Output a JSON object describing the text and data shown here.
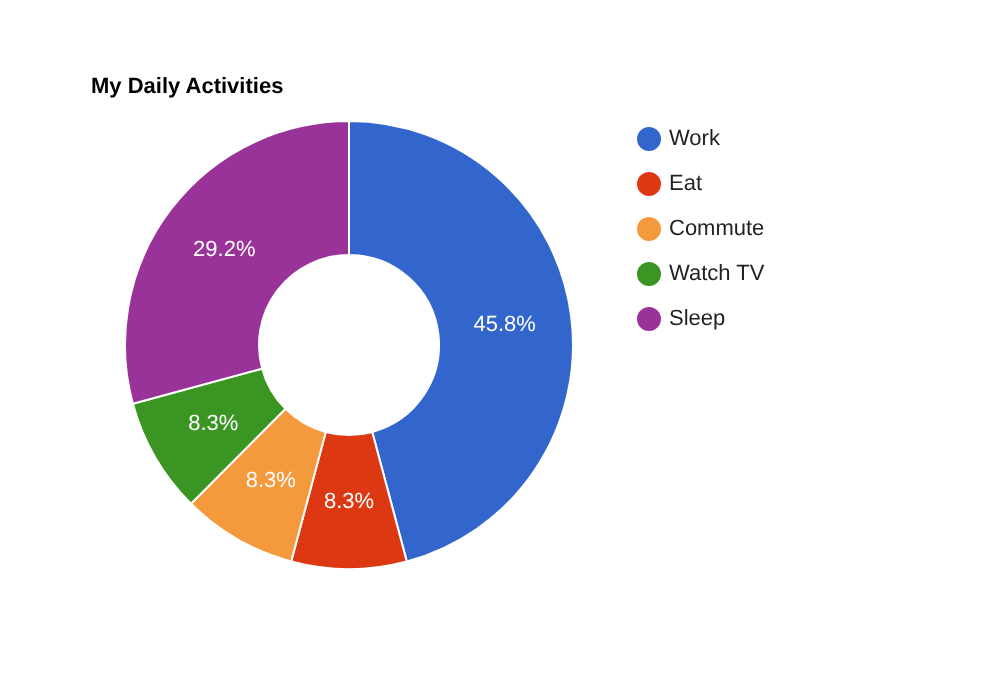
{
  "chart_data": {
    "type": "donut",
    "title": "My Daily Activities",
    "categories": [
      "Work",
      "Eat",
      "Commute",
      "Watch TV",
      "Sleep"
    ],
    "values": [
      45.8,
      8.3,
      8.3,
      8.3,
      29.2
    ],
    "colors": [
      "#3366cc",
      "#dc3912",
      "#f4993c",
      "#3a9522",
      "#9a3399"
    ],
    "value_labels": [
      "45.8%",
      "8.3%",
      "8.3%",
      "8.3%",
      "29.2%"
    ],
    "legend": "right"
  }
}
